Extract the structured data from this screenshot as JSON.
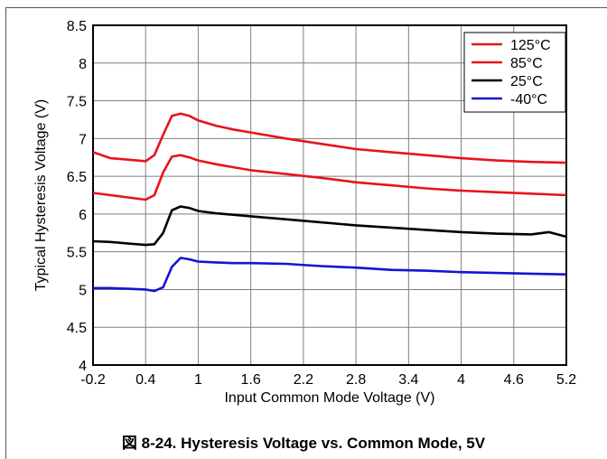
{
  "figure": {
    "caption": "図 8-24. Hysteresis Voltage vs. Common Mode, 5V"
  },
  "chart_data": {
    "type": "line",
    "title": "",
    "xlabel": "Input Common Mode Voltage (V)",
    "ylabel": "Typical Hysteresis Voltage (V)",
    "xlim": [
      -0.2,
      5.2
    ],
    "ylim": [
      4,
      8.5
    ],
    "xticks": [
      "-0.2",
      "0.4",
      "1",
      "1.6",
      "2.2",
      "2.8",
      "3.4",
      "4",
      "4.6",
      "5.2"
    ],
    "yticks": [
      "4",
      "4.5",
      "5",
      "5.5",
      "6",
      "6.5",
      "7",
      "7.5",
      "8",
      "8.5"
    ],
    "grid": true,
    "legend_position": "top-right",
    "series": [
      {
        "name": "125°C",
        "color": "#e8141b",
        "x": [
          -0.2,
          0.0,
          0.2,
          0.4,
          0.5,
          0.6,
          0.7,
          0.8,
          0.9,
          1.0,
          1.2,
          1.4,
          1.6,
          2.0,
          2.4,
          2.8,
          3.2,
          3.6,
          4.0,
          4.4,
          4.8,
          5.2
        ],
        "y": [
          6.82,
          6.74,
          6.72,
          6.7,
          6.78,
          7.05,
          7.3,
          7.33,
          7.3,
          7.24,
          7.17,
          7.12,
          7.08,
          7.0,
          6.93,
          6.86,
          6.82,
          6.78,
          6.74,
          6.71,
          6.69,
          6.68
        ]
      },
      {
        "name": "85°C",
        "color": "#e8141b",
        "x": [
          -0.2,
          0.0,
          0.2,
          0.4,
          0.5,
          0.6,
          0.7,
          0.8,
          0.9,
          1.0,
          1.2,
          1.4,
          1.6,
          2.0,
          2.4,
          2.8,
          3.2,
          3.6,
          4.0,
          4.4,
          4.8,
          5.2
        ],
        "y": [
          6.28,
          6.25,
          6.22,
          6.19,
          6.25,
          6.55,
          6.76,
          6.78,
          6.75,
          6.71,
          6.66,
          6.62,
          6.58,
          6.53,
          6.48,
          6.42,
          6.38,
          6.34,
          6.31,
          6.29,
          6.27,
          6.25
        ]
      },
      {
        "name": "25°C",
        "color": "#000000",
        "x": [
          -0.2,
          0.0,
          0.2,
          0.4,
          0.5,
          0.6,
          0.7,
          0.8,
          0.9,
          1.0,
          1.2,
          1.4,
          1.6,
          2.0,
          2.4,
          2.8,
          3.2,
          3.6,
          4.0,
          4.4,
          4.8,
          5.0,
          5.2
        ],
        "y": [
          5.64,
          5.63,
          5.61,
          5.59,
          5.6,
          5.75,
          6.05,
          6.1,
          6.08,
          6.04,
          6.01,
          5.99,
          5.97,
          5.93,
          5.89,
          5.85,
          5.82,
          5.79,
          5.76,
          5.74,
          5.73,
          5.76,
          5.7
        ]
      },
      {
        "name": "-40°C",
        "color": "#1414d2",
        "x": [
          -0.2,
          0.0,
          0.2,
          0.4,
          0.5,
          0.6,
          0.7,
          0.8,
          0.9,
          1.0,
          1.2,
          1.4,
          1.6,
          2.0,
          2.4,
          2.8,
          3.2,
          3.6,
          4.0,
          4.4,
          4.8,
          5.2
        ],
        "y": [
          5.02,
          5.02,
          5.01,
          5.0,
          4.98,
          5.03,
          5.3,
          5.42,
          5.4,
          5.37,
          5.36,
          5.35,
          5.35,
          5.34,
          5.31,
          5.29,
          5.26,
          5.25,
          5.23,
          5.22,
          5.21,
          5.2
        ]
      }
    ]
  }
}
